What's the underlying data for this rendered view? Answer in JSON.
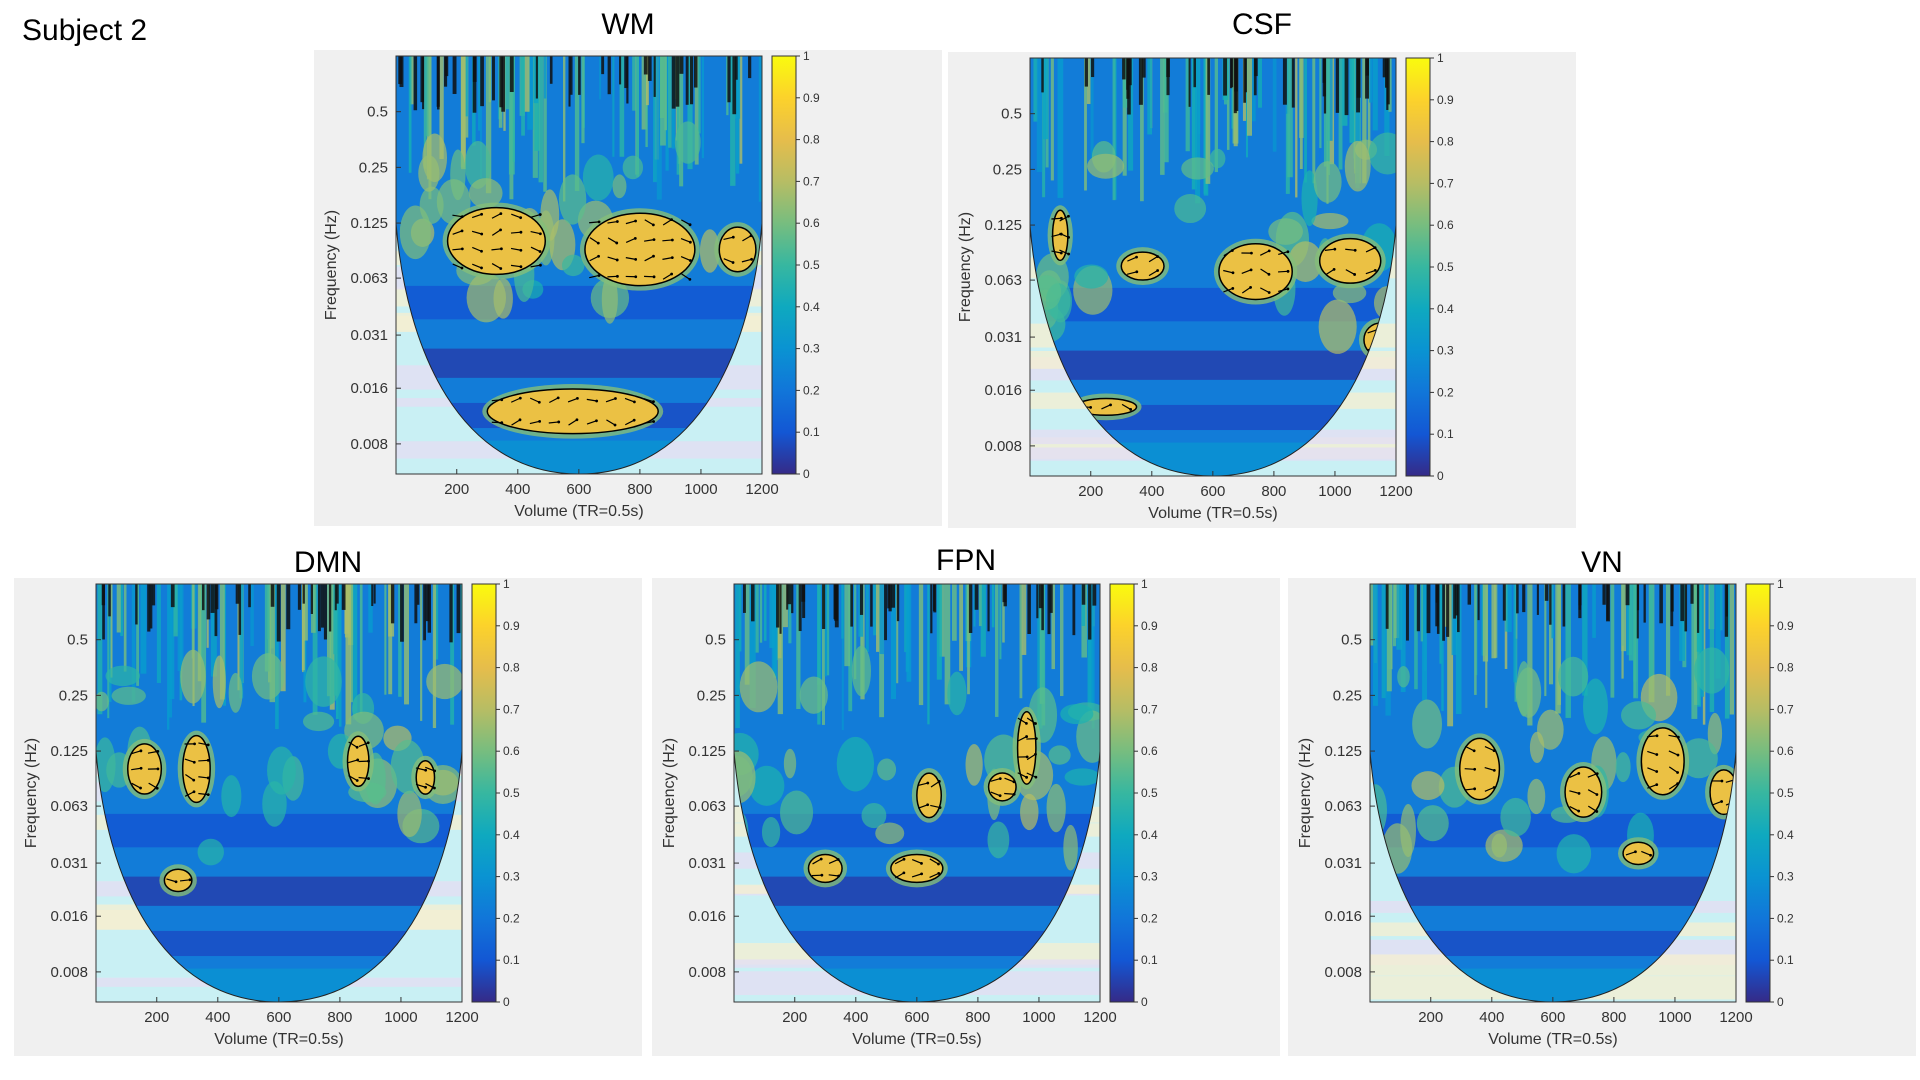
{
  "subject_label": "Subject 2",
  "chart_data": [
    {
      "type": "heatmap",
      "title": "WM",
      "xlabel": "Volume (TR=0.5s)",
      "ylabel": "Frequency (Hz)",
      "x_ticks": [
        200,
        400,
        600,
        800,
        1000,
        1200
      ],
      "x_range": [
        1,
        1200
      ],
      "y_ticks": [
        "0.5",
        "0.25",
        "0.125",
        "0.063",
        "0.031",
        "0.016",
        "0.008"
      ],
      "colorbar_ticks": [
        "0",
        "0.1",
        "0.2",
        "0.3",
        "0.4",
        "0.5",
        "0.6",
        "0.7",
        "0.8",
        "0.9",
        "1"
      ],
      "colorbar_range": [
        0,
        1
      ],
      "significant_regions": [
        {
          "center_volume": 330,
          "center_freq": 0.1,
          "width_volumes": 320,
          "height_octaves": 1.2
        },
        {
          "center_volume": 800,
          "center_freq": 0.09,
          "width_volumes": 360,
          "height_octaves": 1.3
        },
        {
          "center_volume": 1120,
          "center_freq": 0.09,
          "width_volumes": 120,
          "height_octaves": 0.8
        },
        {
          "center_volume": 580,
          "center_freq": 0.012,
          "width_volumes": 560,
          "height_octaves": 0.8
        }
      ]
    },
    {
      "type": "heatmap",
      "title": "CSF",
      "xlabel": "Volume (TR=0.5s)",
      "ylabel": "Frequency (Hz)",
      "x_ticks": [
        200,
        400,
        600,
        800,
        1000,
        1200
      ],
      "x_range": [
        1,
        1200
      ],
      "y_ticks": [
        "0.5",
        "0.25",
        "0.125",
        "0.063",
        "0.031",
        "0.016",
        "0.008"
      ],
      "colorbar_ticks": [
        "0",
        "0.1",
        "0.2",
        "0.3",
        "0.4",
        "0.5",
        "0.6",
        "0.7",
        "0.8",
        "0.9",
        "1"
      ],
      "colorbar_range": [
        0,
        1
      ],
      "significant_regions": [
        {
          "center_volume": 100,
          "center_freq": 0.11,
          "width_volumes": 50,
          "height_octaves": 0.9
        },
        {
          "center_volume": 370,
          "center_freq": 0.075,
          "width_volumes": 140,
          "height_octaves": 0.5
        },
        {
          "center_volume": 740,
          "center_freq": 0.07,
          "width_volumes": 240,
          "height_octaves": 1.0
        },
        {
          "center_volume": 1050,
          "center_freq": 0.08,
          "width_volumes": 200,
          "height_octaves": 0.8
        },
        {
          "center_volume": 1150,
          "center_freq": 0.03,
          "width_volumes": 110,
          "height_octaves": 0.6
        },
        {
          "center_volume": 250,
          "center_freq": 0.013,
          "width_volumes": 200,
          "height_octaves": 0.3
        }
      ]
    },
    {
      "type": "heatmap",
      "title": "DMN",
      "xlabel": "Volume (TR=0.5s)",
      "ylabel": "Frequency (Hz)",
      "x_ticks": [
        200,
        400,
        600,
        800,
        1000,
        1200
      ],
      "x_range": [
        1,
        1200
      ],
      "y_ticks": [
        "0.5",
        "0.25",
        "0.125",
        "0.063",
        "0.031",
        "0.016",
        "0.008"
      ],
      "colorbar_ticks": [
        "0",
        "0.1",
        "0.2",
        "0.3",
        "0.4",
        "0.5",
        "0.6",
        "0.7",
        "0.8",
        "0.9",
        "1"
      ],
      "colorbar_range": [
        0,
        1
      ],
      "significant_regions": [
        {
          "center_volume": 160,
          "center_freq": 0.1,
          "width_volumes": 110,
          "height_octaves": 0.9
        },
        {
          "center_volume": 330,
          "center_freq": 0.1,
          "width_volumes": 90,
          "height_octaves": 1.2
        },
        {
          "center_volume": 270,
          "center_freq": 0.025,
          "width_volumes": 90,
          "height_octaves": 0.4
        },
        {
          "center_volume": 860,
          "center_freq": 0.11,
          "width_volumes": 70,
          "height_octaves": 0.9
        },
        {
          "center_volume": 1080,
          "center_freq": 0.09,
          "width_volumes": 60,
          "height_octaves": 0.6
        }
      ]
    },
    {
      "type": "heatmap",
      "title": "FPN",
      "xlabel": "Volume (TR=0.5s)",
      "ylabel": "Frequency (Hz)",
      "x_ticks": [
        200,
        400,
        600,
        800,
        1000,
        1200
      ],
      "x_range": [
        1,
        1200
      ],
      "y_ticks": [
        "0.5",
        "0.25",
        "0.125",
        "0.063",
        "0.031",
        "0.016",
        "0.008"
      ],
      "colorbar_ticks": [
        "0",
        "0.1",
        "0.2",
        "0.3",
        "0.4",
        "0.5",
        "0.6",
        "0.7",
        "0.8",
        "0.9",
        "1"
      ],
      "colorbar_range": [
        0,
        1
      ],
      "significant_regions": [
        {
          "center_volume": 300,
          "center_freq": 0.029,
          "width_volumes": 110,
          "height_octaves": 0.5
        },
        {
          "center_volume": 600,
          "center_freq": 0.029,
          "width_volumes": 170,
          "height_octaves": 0.5
        },
        {
          "center_volume": 640,
          "center_freq": 0.072,
          "width_volumes": 80,
          "height_octaves": 0.8
        },
        {
          "center_volume": 880,
          "center_freq": 0.08,
          "width_volumes": 90,
          "height_octaves": 0.5
        },
        {
          "center_volume": 960,
          "center_freq": 0.13,
          "width_volumes": 60,
          "height_octaves": 1.3
        }
      ]
    },
    {
      "type": "heatmap",
      "title": "VN",
      "xlabel": "Volume (TR=0.5s)",
      "ylabel": "Frequency (Hz)",
      "x_ticks": [
        200,
        400,
        600,
        800,
        1000,
        1200
      ],
      "x_range": [
        1,
        1200
      ],
      "y_ticks": [
        "0.5",
        "0.25",
        "0.125",
        "0.063",
        "0.031",
        "0.016",
        "0.008"
      ],
      "colorbar_ticks": [
        "0",
        "0.1",
        "0.2",
        "0.3",
        "0.4",
        "0.5",
        "0.6",
        "0.7",
        "0.8",
        "0.9",
        "1"
      ],
      "colorbar_range": [
        0,
        1
      ],
      "significant_regions": [
        {
          "center_volume": 360,
          "center_freq": 0.1,
          "width_volumes": 130,
          "height_octaves": 1.1
        },
        {
          "center_volume": 700,
          "center_freq": 0.075,
          "width_volumes": 120,
          "height_octaves": 0.9
        },
        {
          "center_volume": 960,
          "center_freq": 0.11,
          "width_volumes": 140,
          "height_octaves": 1.2
        },
        {
          "center_volume": 1160,
          "center_freq": 0.075,
          "width_volumes": 90,
          "height_octaves": 0.8
        },
        {
          "center_volume": 880,
          "center_freq": 0.035,
          "width_volumes": 100,
          "height_octaves": 0.4
        }
      ]
    }
  ]
}
